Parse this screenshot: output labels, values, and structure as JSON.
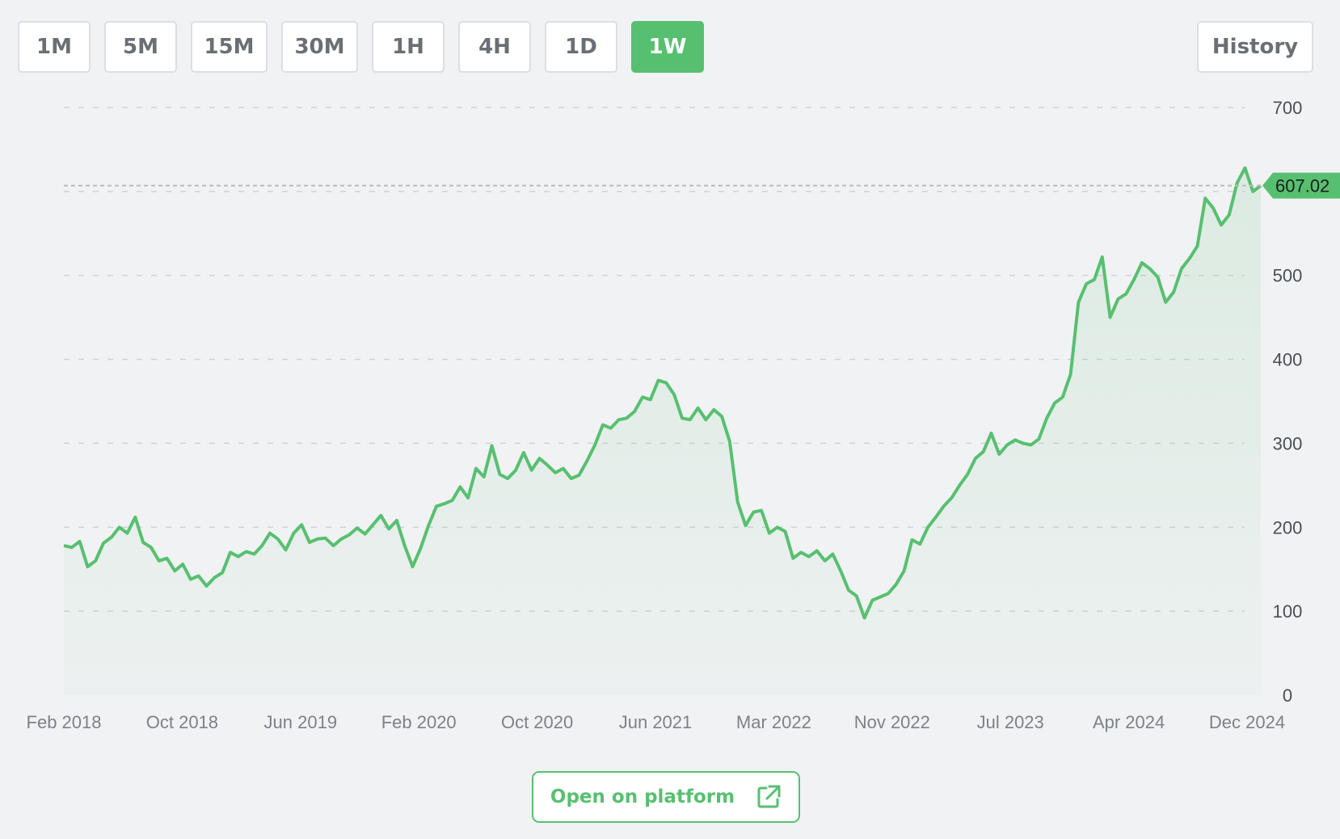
{
  "toolbar": {
    "timeframes": [
      "1M",
      "5M",
      "15M",
      "30M",
      "1H",
      "4H",
      "1D",
      "1W"
    ],
    "active": "1W",
    "history_label": "History"
  },
  "footer": {
    "open_label": "Open on platform"
  },
  "colors": {
    "accent": "#57c070",
    "grid": "#cfd2d6",
    "text": "#7d8288",
    "axis_text": "#4a4f55"
  },
  "chart_data": {
    "type": "area",
    "x_tick_labels": [
      "Feb 2018",
      "Oct 2018",
      "Jun 2019",
      "Feb 2020",
      "Oct 2020",
      "Jun 2021",
      "Mar 2022",
      "Nov 2022",
      "Jul 2023",
      "Apr 2024",
      "Dec 2024"
    ],
    "y_ticks": [
      0,
      100,
      200,
      300,
      400,
      500,
      600,
      700
    ],
    "y_tick_labels": [
      "0",
      "100",
      "200",
      "300",
      "400",
      "500",
      "",
      "700"
    ],
    "ylim": [
      0,
      700
    ],
    "grid": true,
    "current_value": 607.02,
    "current_label": "607.02",
    "series": [
      {
        "values": [
          178,
          176,
          183,
          153,
          160,
          181,
          188,
          200,
          193,
          212,
          182,
          176,
          160,
          163,
          148,
          156,
          138,
          142,
          130,
          140,
          146,
          170,
          165,
          171,
          168,
          178,
          193,
          186,
          173,
          193,
          203,
          182,
          186,
          187,
          178,
          186,
          191,
          199,
          192,
          203,
          214,
          198,
          208,
          178,
          153,
          175,
          202,
          225,
          228,
          232,
          248,
          235,
          270,
          260,
          297,
          263,
          258,
          268,
          289,
          268,
          282,
          274,
          265,
          270,
          258,
          262,
          279,
          298,
          322,
          318,
          328,
          330,
          338,
          355,
          352,
          375,
          372,
          358,
          330,
          328,
          342,
          328,
          340,
          332,
          302,
          230,
          202,
          218,
          220,
          193,
          200,
          195,
          163,
          170,
          165,
          172,
          160,
          168,
          148,
          125,
          118,
          92,
          113,
          117,
          121,
          132,
          148,
          185,
          180,
          200,
          212,
          225,
          235,
          250,
          263,
          282,
          290,
          312,
          287,
          298,
          304,
          300,
          298,
          305,
          330,
          348,
          355,
          382,
          468,
          490,
          495,
          522,
          450,
          472,
          478,
          495,
          515,
          508,
          498,
          468,
          480,
          508,
          520,
          535,
          592,
          580,
          560,
          572,
          610,
          628,
          600,
          607.02
        ]
      }
    ]
  }
}
